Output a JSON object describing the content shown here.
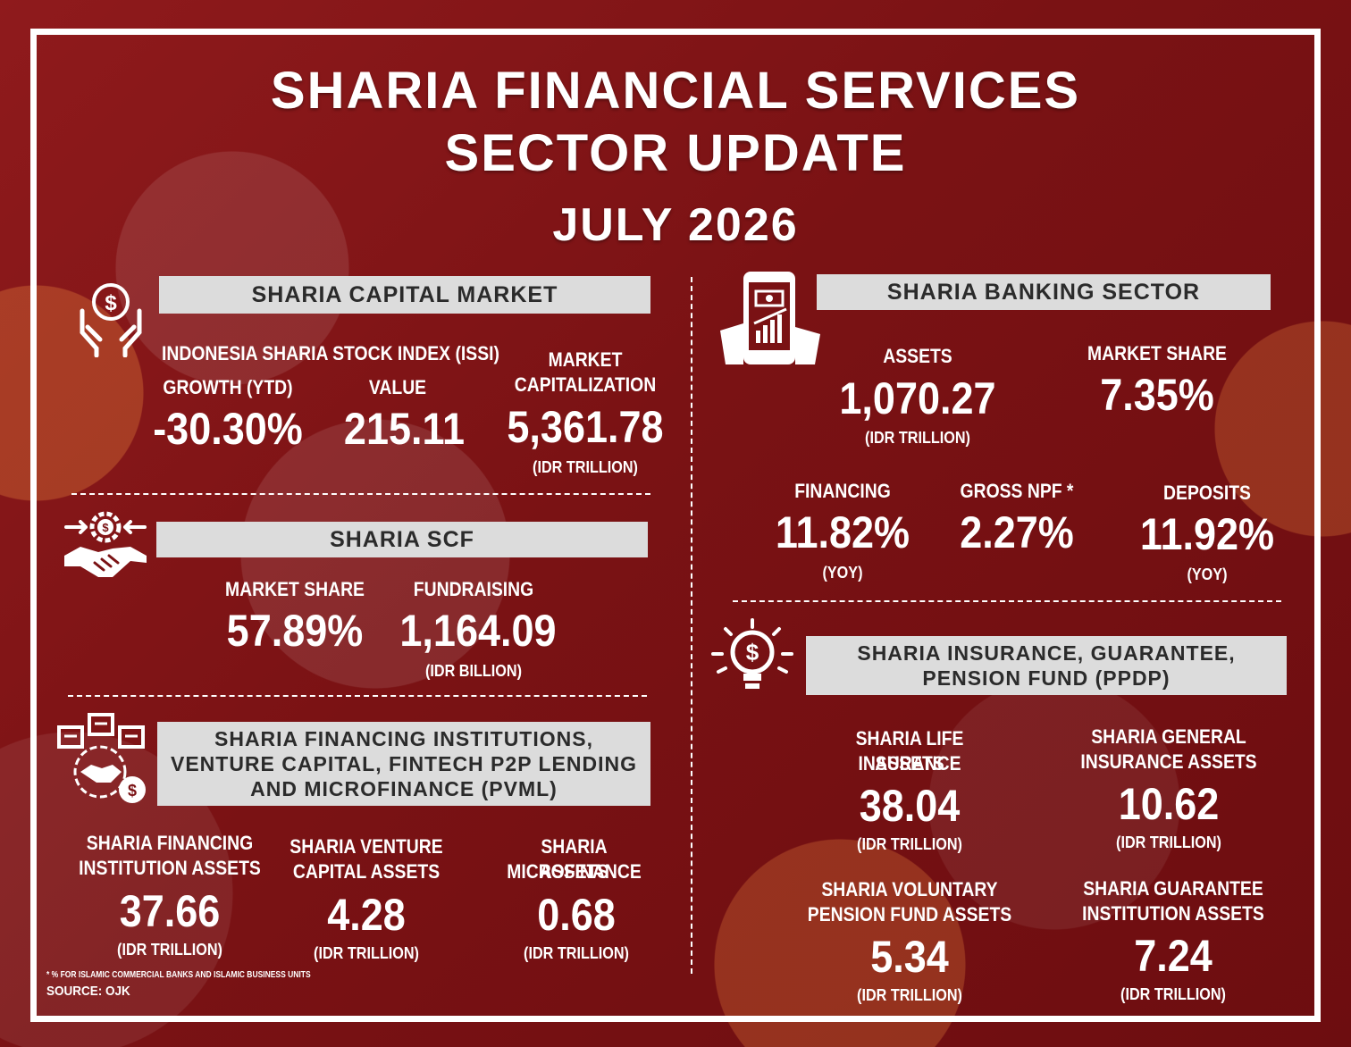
{
  "title": {
    "line1": "SHARIA FINANCIAL SERVICES",
    "line2": "SECTOR UPDATE",
    "period": "JULY 2026"
  },
  "capital_market": {
    "header": "SHARIA CAPITAL MARKET",
    "issi_label": "INDONESIA SHARIA STOCK INDEX (ISSI)",
    "growth_label": "GROWTH  (YTD)",
    "growth_value": "-30.30%",
    "value_label": "VALUE",
    "value_value": "215.11",
    "mcap_label_1": "MARKET",
    "mcap_label_2": "CAPITALIZATION",
    "mcap_value": "5,361.78",
    "mcap_unit": "(IDR TRILLION)",
    "icon": "money-hands-icon"
  },
  "scf": {
    "header": "SHARIA SCF",
    "market_share_label": "MARKET SHARE",
    "market_share_value": "57.89%",
    "fundraising_label": "FUNDRAISING",
    "fundraising_value": "1,164.09",
    "fundraising_unit": "(IDR BILLION)",
    "icon": "handshake-gear-icon"
  },
  "pvml": {
    "header_1": "SHARIA FINANCING INSTITUTIONS,",
    "header_2": "VENTURE CAPITAL, FINTECH P2P LENDING",
    "header_3": "AND MICROFINANCE (PVML)",
    "fin_label_1": "SHARIA FINANCING",
    "fin_label_2": "INSTITUTION ASSETS",
    "fin_value": "37.66",
    "fin_unit": "(IDR TRILLION)",
    "vc_label_1": "SHARIA VENTURE",
    "vc_label_2": "CAPITAL ASSETS",
    "vc_value": "4.28",
    "vc_unit": "(IDR TRILLION)",
    "micro_label_1": "SHARIA MICROFINANCE",
    "micro_label_2": "ASSETS",
    "micro_value": "0.68",
    "micro_unit": "(IDR TRILLION)",
    "icon": "financing-institutions-icon"
  },
  "banking": {
    "header": "SHARIA BANKING SECTOR",
    "assets_label": "ASSETS",
    "assets_value": "1,070.27",
    "assets_unit": "(IDR TRILLION)",
    "market_share_label": "MARKET SHARE",
    "market_share_value": "7.35%",
    "financing_label": "FINANCING",
    "financing_value": "11.82%",
    "financing_unit": "(YOY)",
    "npf_label": "GROSS NPF *",
    "npf_value": "2.27%",
    "deposits_label": "DEPOSITS",
    "deposits_value": "11.92%",
    "deposits_unit": "(YOY)",
    "icon": "mobile-banking-icon"
  },
  "ppdp": {
    "header_1": "SHARIA INSURANCE, GUARANTEE,",
    "header_2": "PENSION FUND (PPDP)",
    "life_label_1": "SHARIA LIFE INSURANCE",
    "life_label_2": "ASSETS",
    "life_value": "38.04",
    "life_unit": "(IDR TRILLION)",
    "general_label_1": "SHARIA GENERAL",
    "general_label_2": "INSURANCE ASSETS",
    "general_value": "10.62",
    "general_unit": "(IDR TRILLION)",
    "pension_label_1": "SHARIA VOLUNTARY",
    "pension_label_2": "PENSION FUND ASSETS",
    "pension_value": "5.34",
    "pension_unit": "(IDR TRILLION)",
    "guarantee_label_1": "SHARIA GUARANTEE",
    "guarantee_label_2": "INSTITUTION ASSETS",
    "guarantee_value": "7.24",
    "guarantee_unit": "(IDR TRILLION)",
    "icon": "idea-bulb-dollar-icon"
  },
  "footer": {
    "note": "* % FOR ISLAMIC COMMERCIAL BANKS AND ISLAMIC BUSINESS UNITS",
    "source": "SOURCE: OJK"
  },
  "colors": {
    "background": "#7a1214",
    "header_box": "#dcdcdc",
    "header_text": "#2b2b2b",
    "text": "#ffffff"
  }
}
